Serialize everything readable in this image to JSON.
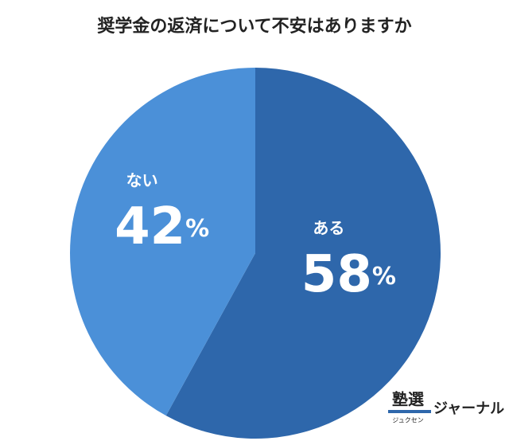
{
  "chart_data": {
    "type": "pie",
    "title": "奨学金の返済について不安はありますか",
    "categories": [
      "ある",
      "ない"
    ],
    "values": [
      58,
      42
    ],
    "value_labels": [
      "58%",
      "42%"
    ],
    "colors": [
      "#2e67ab",
      "#4b90d8"
    ]
  },
  "logo": {
    "main": "塾選",
    "sub": "ジュクセン",
    "name": "ジャーナル"
  }
}
